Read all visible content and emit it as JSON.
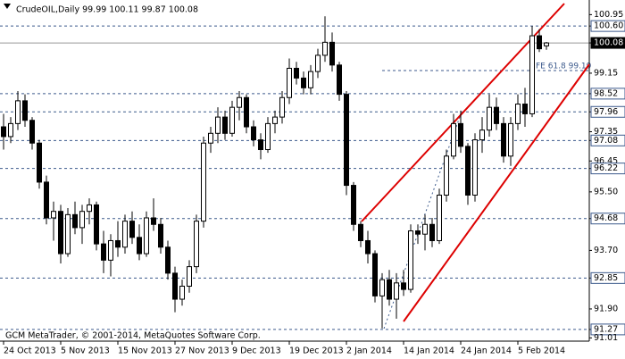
{
  "chart_data": {
    "type": "candlestick",
    "title": "CrudeOIL,Daily  99.99 100.11 99.87 100.08",
    "footer": "GCM MetaTrader, © 2001-2014, MetaQuotes Software Corp.",
    "annotation": "FE 61.8 99.19",
    "categories": [
      "24 Oct 2013",
      null,
      null,
      null,
      null,
      null,
      null,
      null,
      "5 Nov 2013",
      null,
      null,
      null,
      null,
      null,
      null,
      null,
      "15 Nov 2013",
      null,
      null,
      null,
      null,
      null,
      null,
      null,
      "27 Nov 2013",
      null,
      null,
      null,
      null,
      null,
      null,
      null,
      "9 Dec 2013",
      null,
      null,
      null,
      null,
      null,
      null,
      null,
      "19 Dec 2013",
      null,
      null,
      null,
      null,
      null,
      null,
      null,
      "2 Jan 2014",
      null,
      null,
      null,
      null,
      null,
      null,
      null,
      "14 Jan 2014",
      null,
      null,
      null,
      null,
      null,
      null,
      null,
      "24 Jan 2014",
      null,
      null,
      null,
      null,
      null,
      null,
      null,
      "5 Feb 2014",
      null,
      null,
      null,
      null
    ],
    "open": [
      97.5,
      97.2,
      97.6,
      98.3,
      97.7,
      97.0,
      95.8,
      94.7,
      94.9,
      93.6,
      94.8,
      94.4,
      94.9,
      95.1,
      93.9,
      93.4,
      94.0,
      93.8,
      94.6,
      94.1,
      93.6,
      94.7,
      94.5,
      93.8,
      93.0,
      92.2,
      92.6,
      93.2,
      94.6,
      97.0,
      97.3,
      97.8,
      97.3,
      98.1,
      98.4,
      97.5,
      97.1,
      96.8,
      97.6,
      97.8,
      98.4,
      99.3,
      99.0,
      98.7,
      99.2,
      99.7,
      100.1,
      99.4,
      98.5,
      95.7,
      94.5,
      94.0,
      93.6,
      92.3,
      92.8,
      92.2,
      92.7,
      92.5,
      94.3,
      94.2,
      94.5,
      94.0,
      95.4,
      96.6,
      97.6,
      96.9,
      95.4,
      97.1,
      97.4,
      98.1,
      97.6,
      96.6,
      97.6,
      98.2,
      97.9,
      100.3,
      99.99
    ],
    "high": [
      97.9,
      97.8,
      98.6,
      98.5,
      97.8,
      97.1,
      96.0,
      95.2,
      95.1,
      95.0,
      95.2,
      95.1,
      95.3,
      95.2,
      94.3,
      94.2,
      94.6,
      94.8,
      94.9,
      94.5,
      94.9,
      95.3,
      94.7,
      94.0,
      93.2,
      92.8,
      93.4,
      94.8,
      97.2,
      97.5,
      98.1,
      98.0,
      98.3,
      98.6,
      98.5,
      97.7,
      97.3,
      97.8,
      98.0,
      98.6,
      99.6,
      99.5,
      99.2,
      99.4,
      99.9,
      100.9,
      100.4,
      99.5,
      98.6,
      95.8,
      94.6,
      94.3,
      93.7,
      93.0,
      93.1,
      93.0,
      93.1,
      94.5,
      94.5,
      94.8,
      94.7,
      95.6,
      96.8,
      97.9,
      98.0,
      97.0,
      97.3,
      97.8,
      98.5,
      98.4,
      97.8,
      97.8,
      98.5,
      98.7,
      100.6,
      100.5,
      100.11
    ],
    "low": [
      96.8,
      97.0,
      97.4,
      97.5,
      96.8,
      95.6,
      94.5,
      94.0,
      93.3,
      93.5,
      94.2,
      93.9,
      94.5,
      93.7,
      93.0,
      92.9,
      93.5,
      93.6,
      93.9,
      93.4,
      93.5,
      94.3,
      93.6,
      92.8,
      91.8,
      92.0,
      92.4,
      93.0,
      94.4,
      96.7,
      97.0,
      97.1,
      97.2,
      97.7,
      97.3,
      96.9,
      96.5,
      96.7,
      97.3,
      97.6,
      98.2,
      98.8,
      98.5,
      98.5,
      99.0,
      99.5,
      99.2,
      98.3,
      95.4,
      94.3,
      93.8,
      93.3,
      92.1,
      91.3,
      92.0,
      91.6,
      92.3,
      92.4,
      93.9,
      93.7,
      93.8,
      93.9,
      95.2,
      96.5,
      96.7,
      95.1,
      95.2,
      96.7,
      97.2,
      97.4,
      96.4,
      96.3,
      97.4,
      97.5,
      97.8,
      99.8,
      99.87
    ],
    "close": [
      97.2,
      97.6,
      98.3,
      97.7,
      97.0,
      95.8,
      94.7,
      94.9,
      93.6,
      94.8,
      94.4,
      94.9,
      95.1,
      93.9,
      93.4,
      94.0,
      93.8,
      94.6,
      94.1,
      93.6,
      94.7,
      94.5,
      93.8,
      93.0,
      92.2,
      92.6,
      93.2,
      94.6,
      97.0,
      97.3,
      97.8,
      97.3,
      98.1,
      98.4,
      97.5,
      97.1,
      96.8,
      97.6,
      97.8,
      98.4,
      99.3,
      99.0,
      98.7,
      99.2,
      99.7,
      100.1,
      99.4,
      98.5,
      95.7,
      94.5,
      94.0,
      93.6,
      92.3,
      92.8,
      92.2,
      92.7,
      92.5,
      94.3,
      94.2,
      94.5,
      94.0,
      95.4,
      96.6,
      97.6,
      96.9,
      95.4,
      97.1,
      97.4,
      98.1,
      97.6,
      96.6,
      97.6,
      98.2,
      97.9,
      100.3,
      99.9,
      100.08
    ],
    "ylim": [
      90.91,
      101.4
    ],
    "yticks": [
      100.95,
      {
        "value": 100.6,
        "label": "100.60"
      },
      100.08,
      99.15,
      98.52,
      97.96,
      97.35,
      97.08,
      96.45,
      96.22,
      {
        "value": 95.5,
        "label": "95.50"
      },
      94.68,
      {
        "value": 93.7,
        "label": "93.70"
      },
      92.85,
      {
        "value": 91.9,
        "label": "91.90"
      },
      91.27,
      91.01
    ],
    "levels": [
      100.6,
      98.52,
      97.96,
      97.08,
      96.22,
      94.68,
      92.85,
      91.27
    ],
    "last_price": 100.08,
    "level_color": "#3c5a8c",
    "up_color": "#ffffff",
    "down_color": "#000000",
    "trendline_color": "#dd0000"
  }
}
